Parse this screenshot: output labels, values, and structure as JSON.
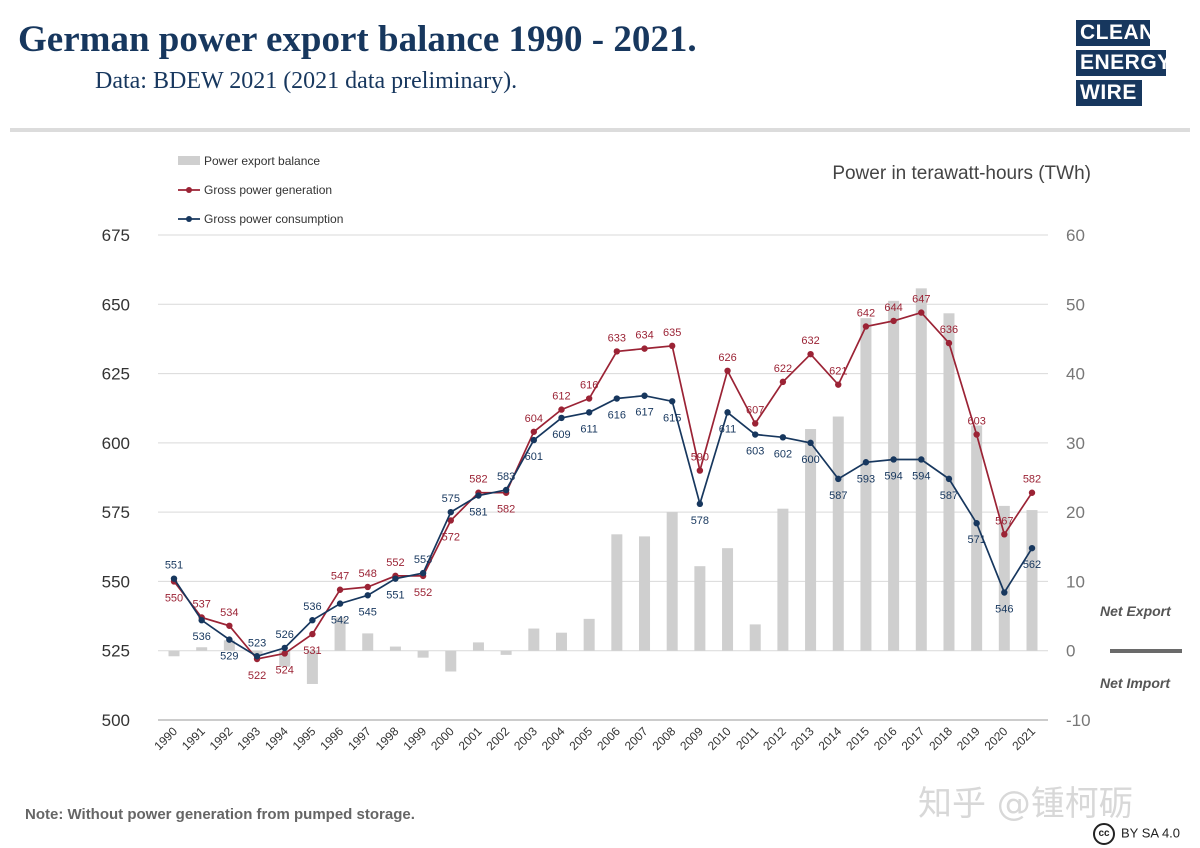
{
  "header": {
    "title": "German power export balance 1990 - 2021.",
    "subtitle": "Data: BDEW 2021 (2021 data preliminary).",
    "logo": {
      "line1": "CLEAN",
      "line2": "ENERGY",
      "line3": "WIRE"
    }
  },
  "footer": {
    "note": "Note: Without power generation from pumped storage.",
    "license_icon": "cc",
    "license": "BY SA 4.0",
    "watermark": "知乎 @锺柯砺"
  },
  "colors": {
    "title": "#17375e",
    "generation": "#9b2335",
    "consumption": "#17375e",
    "balance": "#cfcfcf"
  },
  "chart_data": {
    "type": "bar",
    "unit_label": "Power in terawatt-hours (TWh)",
    "legend": {
      "position": "top-left",
      "items": [
        "Power export balance",
        "Gross power generation",
        "Gross power consumption"
      ]
    },
    "grid": true,
    "y_left": {
      "range": [
        500,
        675
      ],
      "ticks": [
        500,
        525,
        550,
        575,
        600,
        625,
        650,
        675
      ]
    },
    "y_right": {
      "range": [
        -10,
        60
      ],
      "ticks": [
        -10,
        0,
        10,
        20,
        30,
        40,
        50,
        60
      ]
    },
    "annotations": {
      "net_export": "Net Export",
      "net_import": "Net Import"
    },
    "categories": [
      "1990",
      "1991",
      "1992",
      "1993",
      "1994",
      "1995",
      "1996",
      "1997",
      "1998",
      "1999",
      "2000",
      "2001",
      "2002",
      "2003",
      "2004",
      "2005",
      "2006",
      "2007",
      "2008",
      "2009",
      "2010",
      "2011",
      "2012",
      "2013",
      "2014",
      "2015",
      "2016",
      "2017",
      "2018",
      "2019",
      "2020",
      "2021"
    ],
    "series": [
      {
        "name": "Power export balance",
        "axis": "right",
        "type": "bar",
        "values": [
          -0.8,
          0.5,
          1.5,
          -0.5,
          -2.3,
          -4.8,
          4.8,
          2.5,
          0.6,
          -1.0,
          -3.0,
          1.2,
          -0.6,
          3.2,
          2.6,
          4.6,
          16.8,
          16.5,
          20.0,
          12.2,
          14.8,
          3.8,
          20.5,
          32.0,
          33.8,
          48.0,
          50.5,
          52.3,
          48.7,
          32.5,
          20.9,
          20.3
        ]
      },
      {
        "name": "Gross power generation",
        "axis": "left",
        "type": "line",
        "values": [
          550,
          537,
          534,
          522,
          524,
          531,
          547,
          548,
          552,
          552,
          572,
          582,
          582,
          604,
          612,
          616,
          633,
          634,
          635,
          590,
          626,
          607,
          622,
          632,
          621,
          642,
          644,
          647,
          636,
          603,
          567,
          582
        ]
      },
      {
        "name": "Gross power consumption",
        "axis": "left",
        "type": "line",
        "values": [
          551,
          536,
          529,
          523,
          526,
          536,
          542,
          545,
          551,
          553,
          575,
          581,
          583,
          601,
          609,
          611,
          616,
          617,
          615,
          578,
          611,
          603,
          602,
          600,
          587,
          593,
          594,
          594,
          587,
          571,
          546,
          562
        ]
      }
    ]
  }
}
